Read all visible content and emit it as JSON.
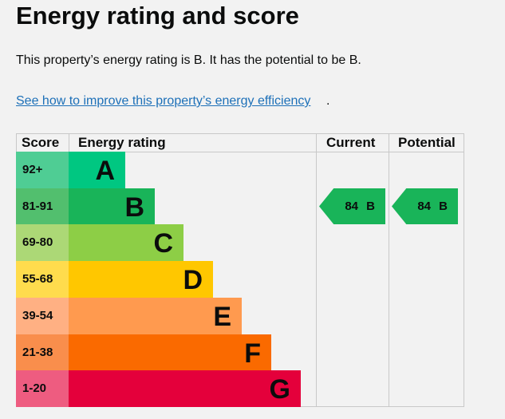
{
  "title": "Energy rating and score",
  "summary": "This property’s energy rating is B. It has the potential to be B.",
  "link": "See how to improve this property’s energy efficiency",
  "link_suffix": ".",
  "headers": {
    "score": "Score",
    "rating": "Energy rating",
    "current": "Current",
    "potential": "Potential"
  },
  "bands": [
    {
      "score": "92+",
      "letter": "A",
      "color": "#00c781",
      "score_color": "#4fcd94"
    },
    {
      "score": "81-91",
      "letter": "B",
      "color": "#19b459",
      "score_color": "#52bf6e"
    },
    {
      "score": "69-80",
      "letter": "C",
      "color": "#8dce46",
      "score_color": "#acd876"
    },
    {
      "score": "55-68",
      "letter": "D",
      "color": "#ffc700",
      "score_color": "#ffdc4d"
    },
    {
      "score": "39-54",
      "letter": "E",
      "color": "#ff9a4f",
      "score_color": "#ffb083"
    },
    {
      "score": "21-38",
      "letter": "F",
      "color": "#fa6a00",
      "score_color": "#f98e4c"
    },
    {
      "score": "1-20",
      "letter": "G",
      "color": "#e4003b",
      "score_color": "#ee5c80"
    }
  ],
  "current": {
    "label": "84 B",
    "color": "#19b459"
  },
  "potential": {
    "label": "84 B",
    "color": "#19b459"
  }
}
